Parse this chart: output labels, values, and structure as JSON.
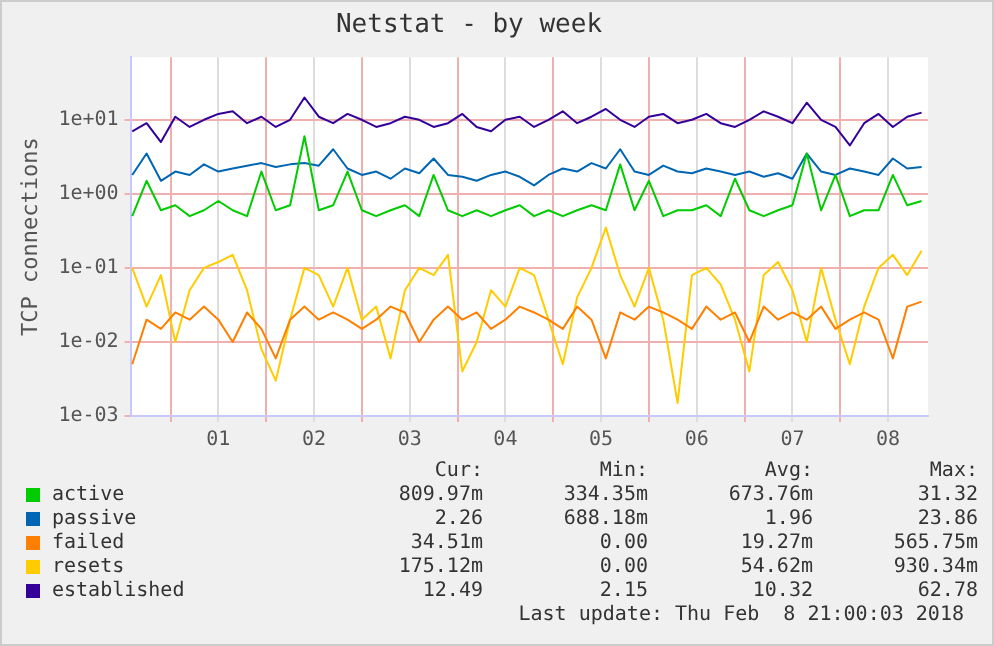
{
  "chart_data": {
    "type": "line",
    "title": "Netstat - by week",
    "ylabel": "TCP connections",
    "log": "y",
    "grid": true,
    "legend": "bottom",
    "marker": "none",
    "line_style": "solid",
    "xlim": [
      0.583,
      8.917
    ],
    "xticks": [
      {
        "value": 1,
        "label": null
      },
      {
        "value": 1.5,
        "label": "01"
      },
      {
        "value": 2,
        "label": null
      },
      {
        "value": 2.5,
        "label": "02"
      },
      {
        "value": 3,
        "label": null
      },
      {
        "value": 3.5,
        "label": "03"
      },
      {
        "value": 4,
        "label": null
      },
      {
        "value": 4.5,
        "label": "04"
      },
      {
        "value": 5,
        "label": null
      },
      {
        "value": 5.5,
        "label": "05"
      },
      {
        "value": 6,
        "label": null
      },
      {
        "value": 6.5,
        "label": "06"
      },
      {
        "value": 7,
        "label": null
      },
      {
        "value": 7.5,
        "label": "07"
      },
      {
        "value": 8,
        "label": null
      },
      {
        "value": 8.5,
        "label": "08"
      }
    ],
    "ylim": [
      0.001,
      70
    ],
    "yticks": [
      {
        "value": 0.001,
        "label": "1e-03"
      },
      {
        "value": 0.01,
        "label": "1e-02"
      },
      {
        "value": 0.1,
        "label": "1e-01"
      },
      {
        "value": 1,
        "label": "1e+00"
      },
      {
        "value": 10,
        "label": "1e+01"
      }
    ],
    "x": [
      0.6,
      0.75,
      0.9,
      1.05,
      1.2,
      1.35,
      1.5,
      1.65,
      1.8,
      1.95,
      2.1,
      2.25,
      2.4,
      2.55,
      2.7,
      2.85,
      3,
      3.15,
      3.3,
      3.45,
      3.6,
      3.75,
      3.9,
      4.05,
      4.2,
      4.35,
      4.5,
      4.65,
      4.8,
      4.95,
      5.1,
      5.25,
      5.4,
      5.55,
      5.7,
      5.85,
      6,
      6.15,
      6.3,
      6.45,
      6.6,
      6.75,
      6.9,
      7.05,
      7.2,
      7.35,
      7.5,
      7.65,
      7.8,
      7.95,
      8.1,
      8.25,
      8.4,
      8.55,
      8.7,
      8.85
    ],
    "series": [
      {
        "name": "active",
        "color": "#00cc00",
        "values": [
          0.5,
          1.5,
          0.6,
          0.7,
          0.5,
          0.6,
          0.8,
          0.6,
          0.5,
          2,
          0.6,
          0.7,
          6,
          0.6,
          0.7,
          2,
          0.6,
          0.5,
          0.6,
          0.7,
          0.5,
          1.8,
          0.6,
          0.5,
          0.6,
          0.5,
          0.6,
          0.7,
          0.5,
          0.6,
          0.5,
          0.6,
          0.7,
          0.6,
          2.5,
          0.6,
          1.5,
          0.5,
          0.6,
          0.6,
          0.7,
          0.5,
          1.6,
          0.6,
          0.5,
          0.6,
          0.7,
          3.5,
          0.6,
          1.8,
          0.5,
          0.6,
          0.6,
          1.8,
          0.7,
          0.8
        ]
      },
      {
        "name": "passive",
        "color": "#0066b3",
        "values": [
          1.8,
          3.5,
          1.5,
          2,
          1.8,
          2.5,
          2,
          2.2,
          2.4,
          2.6,
          2.3,
          2.5,
          2.6,
          2.4,
          4,
          2.2,
          1.8,
          2,
          1.6,
          2.2,
          1.9,
          3,
          1.8,
          1.7,
          1.5,
          1.8,
          2,
          1.7,
          1.3,
          1.8,
          2.2,
          2,
          2.6,
          2.2,
          4,
          2,
          1.8,
          2.4,
          2,
          1.9,
          2.2,
          2,
          1.8,
          2,
          1.7,
          1.9,
          1.6,
          3.5,
          2,
          1.8,
          2.2,
          2,
          1.8,
          3,
          2.2,
          2.3
        ]
      },
      {
        "name": "failed",
        "color": "#ff8000",
        "values": [
          0.005,
          0.02,
          0.015,
          0.025,
          0.02,
          0.03,
          0.02,
          0.01,
          0.025,
          0.015,
          0.006,
          0.02,
          0.03,
          0.02,
          0.025,
          0.02,
          0.015,
          0.02,
          0.03,
          0.025,
          0.01,
          0.02,
          0.03,
          0.02,
          0.025,
          0.015,
          0.02,
          0.03,
          0.025,
          0.02,
          0.015,
          0.03,
          0.02,
          0.006,
          0.025,
          0.02,
          0.03,
          0.025,
          0.02,
          0.015,
          0.03,
          0.02,
          0.025,
          0.01,
          0.03,
          0.02,
          0.025,
          0.02,
          0.03,
          0.015,
          0.02,
          0.025,
          0.02,
          0.006,
          0.03,
          0.035
        ]
      },
      {
        "name": "resets",
        "color": "#ffcc00",
        "values": [
          0.1,
          0.03,
          0.08,
          0.01,
          0.05,
          0.1,
          0.12,
          0.15,
          0.05,
          0.008,
          0.003,
          0.02,
          0.1,
          0.08,
          0.03,
          0.1,
          0.02,
          0.03,
          0.006,
          0.05,
          0.1,
          0.08,
          0.15,
          0.004,
          0.01,
          0.05,
          0.03,
          0.1,
          0.08,
          0.02,
          0.005,
          0.04,
          0.1,
          0.35,
          0.08,
          0.03,
          0.1,
          0.02,
          0.0015,
          0.08,
          0.1,
          0.06,
          0.02,
          0.004,
          0.08,
          0.12,
          0.05,
          0.01,
          0.1,
          0.02,
          0.005,
          0.03,
          0.1,
          0.15,
          0.08,
          0.17
        ]
      },
      {
        "name": "established",
        "color": "#330099",
        "values": [
          7,
          9,
          5,
          11,
          8,
          10,
          12,
          13,
          9,
          11,
          8,
          10,
          20,
          11,
          9,
          12,
          10,
          8,
          9,
          11,
          10,
          8,
          9,
          12,
          8,
          7,
          10,
          11,
          8,
          10,
          13,
          9,
          11,
          14,
          10,
          8,
          11,
          12,
          9,
          10,
          12,
          9,
          8,
          10,
          13,
          11,
          9,
          17,
          10,
          8,
          4.5,
          9,
          12,
          8,
          11,
          12.5
        ]
      }
    ],
    "annotations": [
      "Cur:",
      "Min:",
      "Avg:",
      "Max:",
      "809.97m",
      "334.35m",
      "673.76m",
      "31.32",
      "2.26",
      "688.18m",
      "1.96",
      "23.86",
      "34.51m",
      "0.00",
      "19.27m",
      "565.75m",
      "175.12m",
      "0.00",
      "54.62m",
      "930.34m",
      "12.49",
      "2.15",
      "10.32",
      "62.78",
      "Last update: Thu Feb  8 21:00:03 2018"
    ]
  }
}
